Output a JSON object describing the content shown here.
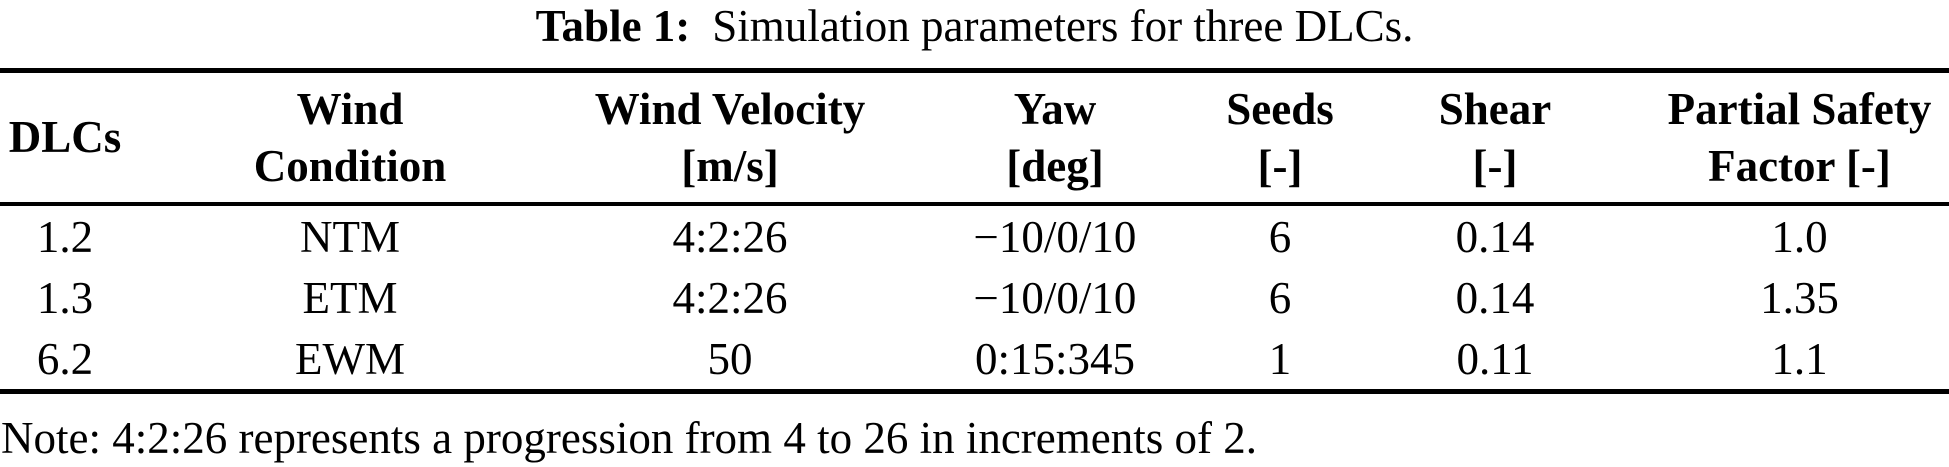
{
  "title": {
    "label": "Table 1:",
    "text": "Simulation parameters for three DLCs."
  },
  "table": {
    "columns": [
      {
        "id": "dlcs",
        "lines": [
          "DLCs"
        ]
      },
      {
        "id": "wind-condition",
        "lines": [
          "Wind",
          "Condition"
        ]
      },
      {
        "id": "wind-velocity",
        "lines": [
          "Wind Velocity",
          "[m/s]"
        ]
      },
      {
        "id": "yaw",
        "lines": [
          "Yaw",
          "[deg]"
        ]
      },
      {
        "id": "seeds",
        "lines": [
          "Seeds",
          "[-]"
        ]
      },
      {
        "id": "shear",
        "lines": [
          "Shear",
          "[-]"
        ]
      },
      {
        "id": "partial-safety-factor",
        "lines": [
          "Partial Safety",
          "Factor [-]"
        ]
      }
    ],
    "rows": [
      [
        "1.2",
        "NTM",
        "4:2:26",
        "−10/0/10",
        "6",
        "0.14",
        "1.0"
      ],
      [
        "1.3",
        "ETM",
        "4:2:26",
        "−10/0/10",
        "6",
        "0.14",
        "1.35"
      ],
      [
        "6.2",
        "EWM",
        "50",
        "0:15:345",
        "1",
        "0.11",
        "1.1"
      ]
    ]
  },
  "note": "Note: 4:2:26 represents a progression from 4 to 26 in increments of 2.",
  "colors": {
    "text": "#000000",
    "background": "#ffffff",
    "rule": "#000000"
  }
}
